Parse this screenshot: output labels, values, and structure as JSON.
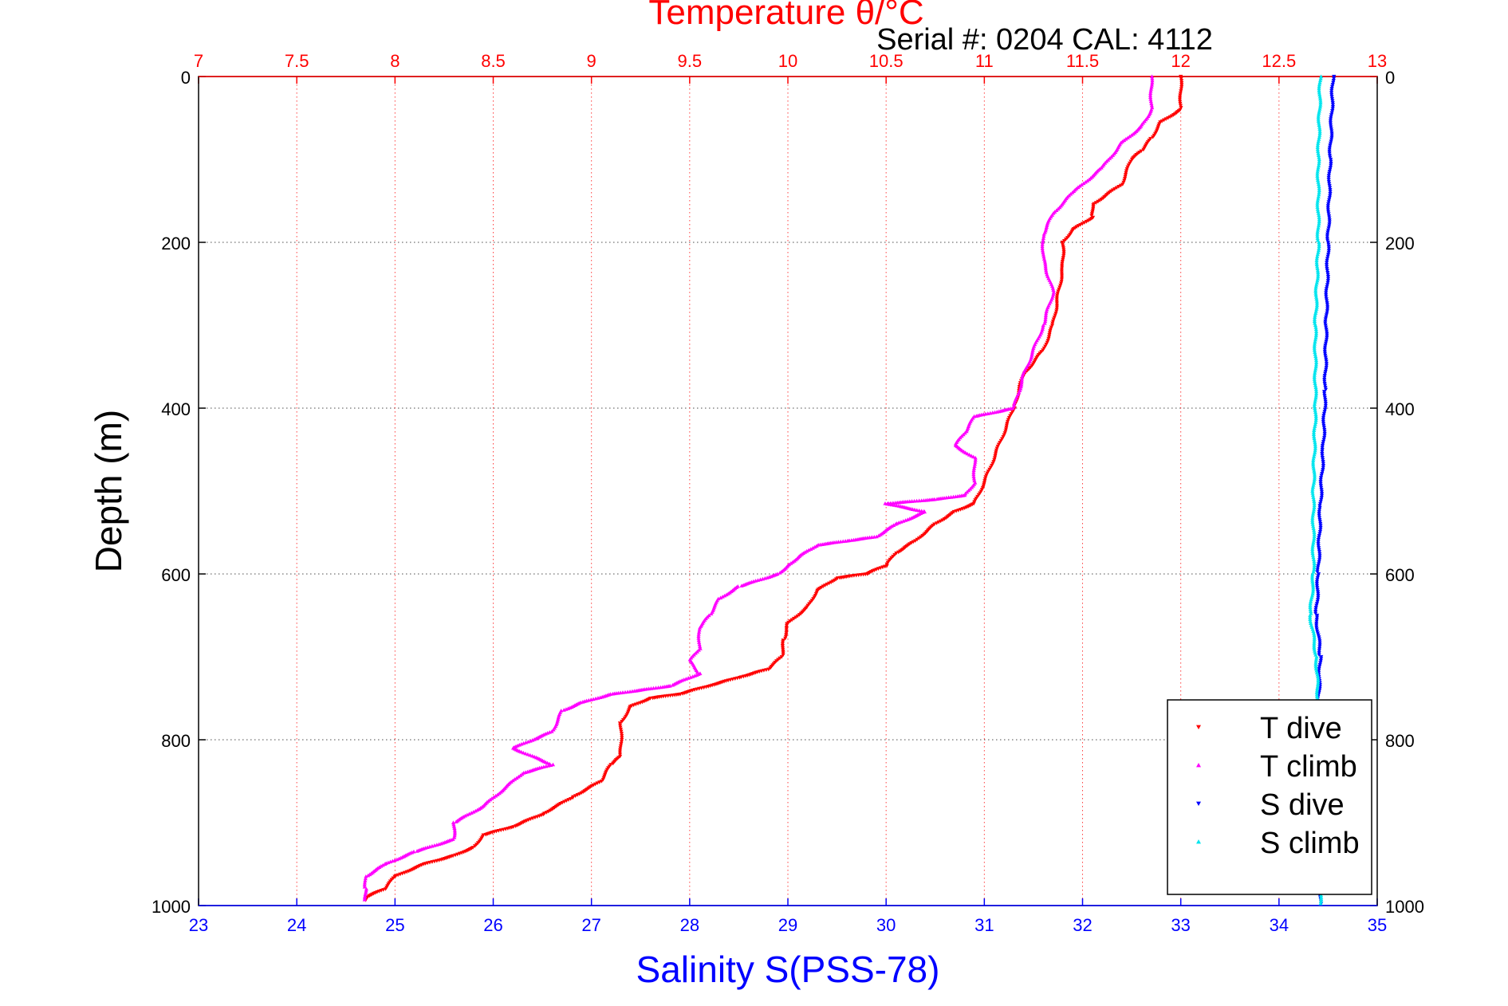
{
  "chart_data": {
    "type": "scatter",
    "title": "Temperature θ/°C",
    "subtitle": "Serial #: 0204  CAL: 4112",
    "xlabel_bottom": "Salinity S(PSS-78)",
    "ylabel": "Depth (m)",
    "y_axis": {
      "range": [
        0,
        1000
      ],
      "reversed": true,
      "ticks": [
        "0",
        "200",
        "400",
        "600",
        "800",
        "1000"
      ]
    },
    "x_top": {
      "label": "Temperature θ/°C",
      "range": [
        7,
        13
      ],
      "ticks": [
        "7",
        "7.5",
        "8",
        "8.5",
        "9",
        "9.5",
        "10",
        "10.5",
        "11",
        "11.5",
        "12",
        "12.5",
        "13"
      ]
    },
    "x_bottom": {
      "label": "Salinity S(PSS-78)",
      "range": [
        23,
        35
      ],
      "ticks": [
        "23",
        "24",
        "25",
        "26",
        "27",
        "28",
        "29",
        "30",
        "31",
        "32",
        "33",
        "34",
        "35"
      ]
    },
    "grid": true,
    "legend": {
      "placement": "bottom-right"
    },
    "colors": {
      "temperature_axis": "#ff0000",
      "salinity_axis": "#0000ff"
    },
    "series": [
      {
        "name": "T dive",
        "axis": "temperature",
        "color": "#ff0000",
        "marker": "down-triangle",
        "points": [
          [
            12.0,
            0
          ],
          [
            12.0,
            40
          ],
          [
            11.9,
            55
          ],
          [
            11.85,
            75
          ],
          [
            11.8,
            90
          ],
          [
            11.75,
            100
          ],
          [
            11.7,
            130
          ],
          [
            11.55,
            155
          ],
          [
            11.55,
            170
          ],
          [
            11.45,
            185
          ],
          [
            11.4,
            200
          ],
          [
            11.4,
            230
          ],
          [
            11.35,
            300
          ],
          [
            11.3,
            330
          ],
          [
            11.2,
            360
          ],
          [
            11.15,
            400
          ],
          [
            11.1,
            430
          ],
          [
            11.05,
            460
          ],
          [
            11.0,
            490
          ],
          [
            10.95,
            515
          ],
          [
            10.85,
            525
          ],
          [
            10.75,
            540
          ],
          [
            10.65,
            560
          ],
          [
            10.55,
            575
          ],
          [
            10.5,
            590
          ],
          [
            10.4,
            600
          ],
          [
            10.25,
            605
          ],
          [
            10.15,
            620
          ],
          [
            10.1,
            640
          ],
          [
            10.0,
            660
          ],
          [
            9.98,
            680
          ],
          [
            9.97,
            700
          ],
          [
            9.9,
            715
          ],
          [
            9.75,
            725
          ],
          [
            9.6,
            735
          ],
          [
            9.45,
            745
          ],
          [
            9.3,
            750
          ],
          [
            9.2,
            760
          ],
          [
            9.15,
            780
          ],
          [
            9.15,
            820
          ],
          [
            9.1,
            830
          ],
          [
            9.05,
            850
          ],
          [
            8.9,
            870
          ],
          [
            8.75,
            890
          ],
          [
            8.6,
            905
          ],
          [
            8.45,
            915
          ],
          [
            8.4,
            930
          ],
          [
            8.3,
            940
          ],
          [
            8.15,
            950
          ],
          [
            8.0,
            965
          ],
          [
            7.95,
            980
          ],
          [
            7.85,
            990
          ],
          [
            7.85,
            995
          ]
        ]
      },
      {
        "name": "T climb",
        "axis": "temperature",
        "color": "#ff00ff",
        "marker": "up-triangle",
        "points": [
          [
            11.85,
            0
          ],
          [
            11.85,
            40
          ],
          [
            11.8,
            60
          ],
          [
            11.7,
            80
          ],
          [
            11.6,
            110
          ],
          [
            11.45,
            140
          ],
          [
            11.35,
            165
          ],
          [
            11.3,
            190
          ],
          [
            11.3,
            220
          ],
          [
            11.35,
            260
          ],
          [
            11.3,
            300
          ],
          [
            11.25,
            330
          ],
          [
            11.2,
            360
          ],
          [
            11.15,
            400
          ],
          [
            10.95,
            410
          ],
          [
            10.9,
            430
          ],
          [
            10.85,
            445
          ],
          [
            10.95,
            460
          ],
          [
            10.95,
            490
          ],
          [
            10.9,
            505
          ],
          [
            10.75,
            510
          ],
          [
            10.5,
            515
          ],
          [
            10.7,
            525
          ],
          [
            10.55,
            540
          ],
          [
            10.45,
            555
          ],
          [
            10.3,
            560
          ],
          [
            10.15,
            565
          ],
          [
            10.05,
            580
          ],
          [
            10.0,
            590
          ],
          [
            9.95,
            600
          ],
          [
            9.75,
            615
          ],
          [
            9.65,
            630
          ],
          [
            9.6,
            650
          ],
          [
            9.55,
            665
          ],
          [
            9.55,
            690
          ],
          [
            9.5,
            705
          ],
          [
            9.55,
            720
          ],
          [
            9.4,
            735
          ],
          [
            9.1,
            745
          ],
          [
            8.95,
            755
          ],
          [
            8.85,
            765
          ],
          [
            8.8,
            790
          ],
          [
            8.6,
            810
          ],
          [
            8.8,
            830
          ],
          [
            8.65,
            840
          ],
          [
            8.55,
            860
          ],
          [
            8.45,
            880
          ],
          [
            8.3,
            900
          ],
          [
            8.3,
            920
          ],
          [
            8.1,
            935
          ],
          [
            7.95,
            950
          ],
          [
            7.85,
            965
          ],
          [
            7.85,
            980
          ],
          [
            7.85,
            995
          ]
        ]
      },
      {
        "name": "S dive",
        "axis": "salinity",
        "color": "#0000ff",
        "marker": "down-triangle",
        "points": [
          [
            34.55,
            0
          ],
          [
            34.52,
            100
          ],
          [
            34.5,
            200
          ],
          [
            34.48,
            300
          ],
          [
            34.47,
            380
          ],
          [
            34.45,
            450
          ],
          [
            34.42,
            520
          ],
          [
            34.4,
            600
          ],
          [
            34.38,
            650
          ],
          [
            34.42,
            700
          ],
          [
            34.4,
            760
          ],
          [
            34.4,
            850
          ],
          [
            34.42,
            950
          ],
          [
            34.42,
            1000
          ]
        ]
      },
      {
        "name": "S climb",
        "axis": "salinity",
        "color": "#00e5ee",
        "marker": "up-triangle",
        "points": [
          [
            34.42,
            0
          ],
          [
            34.4,
            100
          ],
          [
            34.4,
            200
          ],
          [
            34.37,
            300
          ],
          [
            34.37,
            400
          ],
          [
            34.35,
            500
          ],
          [
            34.35,
            600
          ],
          [
            34.32,
            650
          ],
          [
            34.38,
            700
          ],
          [
            34.4,
            760
          ],
          [
            34.4,
            850
          ],
          [
            34.42,
            950
          ],
          [
            34.42,
            1000
          ]
        ]
      }
    ]
  }
}
